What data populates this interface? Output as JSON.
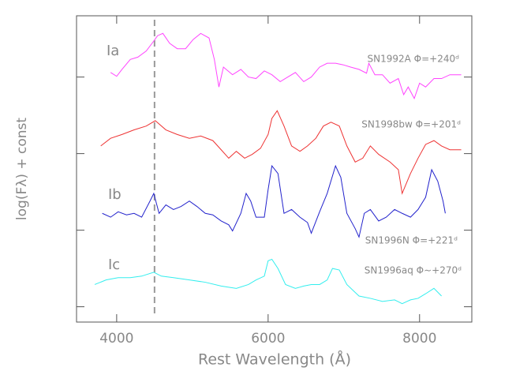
{
  "chart_data": {
    "type": "line",
    "x_label": "Rest Wavelength (Å)",
    "y_label": "log(Fλ) + const",
    "xlim": [
      3470,
      8690
    ],
    "xticks": [
      4000,
      6000,
      8000
    ],
    "ylim": [
      -0.2,
      3.8
    ],
    "yticks": [
      0,
      1,
      2,
      3
    ],
    "vline_x": 4500,
    "series": [
      {
        "name": "SN1992A Φ=+240ᵈ",
        "class": "Ia",
        "color": "#ff44ff",
        "x": [
          3920,
          4000,
          4070,
          4180,
          4280,
          4390,
          4490,
          4540,
          4610,
          4700,
          4800,
          4910,
          5010,
          5110,
          5220,
          5290,
          5350,
          5410,
          5530,
          5640,
          5740,
          5840,
          5950,
          6050,
          6160,
          6260,
          6360,
          6470,
          6570,
          6680,
          6780,
          6890,
          6990,
          7090,
          7200,
          7300,
          7330,
          7410,
          7510,
          7610,
          7720,
          7790,
          7850,
          7930,
          8000,
          8080,
          8190,
          8290,
          8400,
          8550
        ],
        "values": [
          3.06,
          3.01,
          3.1,
          3.23,
          3.26,
          3.34,
          3.47,
          3.54,
          3.57,
          3.44,
          3.37,
          3.37,
          3.49,
          3.57,
          3.51,
          3.23,
          2.87,
          3.13,
          3.03,
          3.1,
          3.0,
          2.98,
          3.08,
          3.03,
          2.94,
          3.0,
          3.06,
          2.94,
          3.0,
          3.13,
          3.18,
          3.18,
          3.16,
          3.13,
          3.1,
          3.05,
          3.18,
          3.03,
          3.03,
          2.92,
          2.98,
          2.77,
          2.87,
          2.72,
          2.92,
          2.87,
          2.98,
          2.98,
          3.03,
          3.03
        ]
      },
      {
        "name": "SN1998bw Φ=+201ᵈ",
        "color": "#ee3333",
        "x": [
          3790,
          3920,
          4070,
          4230,
          4390,
          4510,
          4650,
          4800,
          4960,
          5110,
          5270,
          5380,
          5480,
          5580,
          5690,
          5790,
          5900,
          6000,
          6050,
          6120,
          6210,
          6310,
          6420,
          6520,
          6630,
          6730,
          6830,
          6940,
          7040,
          7150,
          7250,
          7350,
          7460,
          7610,
          7720,
          7770,
          7880,
          7980,
          8080,
          8190,
          8290,
          8400,
          8550
        ],
        "values": [
          2.1,
          2.2,
          2.25,
          2.31,
          2.36,
          2.43,
          2.31,
          2.25,
          2.2,
          2.23,
          2.17,
          2.05,
          1.94,
          2.03,
          1.94,
          1.99,
          2.07,
          2.25,
          2.46,
          2.56,
          2.36,
          2.1,
          2.03,
          2.1,
          2.2,
          2.36,
          2.41,
          2.36,
          2.1,
          1.89,
          1.94,
          2.1,
          1.99,
          1.89,
          1.79,
          1.48,
          1.74,
          1.94,
          2.12,
          2.17,
          2.1,
          2.05,
          2.05
        ]
      },
      {
        "name": "SN1996N Φ=+221ᵈ",
        "class": "Ib",
        "color": "#2222cc",
        "x": [
          3810,
          3920,
          4020,
          4130,
          4230,
          4330,
          4440,
          4490,
          4560,
          4650,
          4750,
          4850,
          4960,
          5060,
          5170,
          5270,
          5380,
          5480,
          5530,
          5640,
          5710,
          5770,
          5840,
          5950,
          6000,
          6050,
          6130,
          6210,
          6310,
          6420,
          6520,
          6570,
          6680,
          6780,
          6890,
          6960,
          7040,
          7150,
          7200,
          7270,
          7350,
          7460,
          7560,
          7670,
          7770,
          7880,
          7980,
          8080,
          8160,
          8240,
          8310,
          8340
        ],
        "values": [
          1.22,
          1.17,
          1.24,
          1.2,
          1.22,
          1.17,
          1.38,
          1.48,
          1.22,
          1.33,
          1.27,
          1.31,
          1.38,
          1.31,
          1.22,
          1.2,
          1.12,
          1.07,
          0.99,
          1.22,
          1.48,
          1.38,
          1.17,
          1.17,
          1.53,
          1.84,
          1.74,
          1.22,
          1.27,
          1.17,
          1.1,
          0.96,
          1.24,
          1.48,
          1.84,
          1.69,
          1.22,
          1.02,
          0.91,
          1.22,
          1.27,
          1.12,
          1.17,
          1.27,
          1.22,
          1.17,
          1.27,
          1.43,
          1.79,
          1.64,
          1.38,
          1.22
        ]
      },
      {
        "name": "SN1996aq Φ∼+270ᵈ",
        "class": "Ic",
        "color": "#33eeee",
        "x": [
          3710,
          3860,
          4020,
          4180,
          4330,
          4490,
          4590,
          4750,
          4960,
          5170,
          5380,
          5580,
          5740,
          5840,
          5950,
          6000,
          6050,
          6130,
          6230,
          6360,
          6470,
          6570,
          6680,
          6780,
          6850,
          6940,
          7040,
          7200,
          7350,
          7510,
          7670,
          7770,
          7880,
          7980,
          8080,
          8190,
          8290
        ],
        "values": [
          0.29,
          0.35,
          0.38,
          0.38,
          0.4,
          0.45,
          0.4,
          0.38,
          0.35,
          0.32,
          0.27,
          0.24,
          0.29,
          0.35,
          0.4,
          0.6,
          0.62,
          0.5,
          0.29,
          0.24,
          0.27,
          0.29,
          0.29,
          0.35,
          0.5,
          0.48,
          0.29,
          0.14,
          0.11,
          0.07,
          0.09,
          0.04,
          0.09,
          0.11,
          0.17,
          0.24,
          0.14
        ]
      }
    ]
  }
}
